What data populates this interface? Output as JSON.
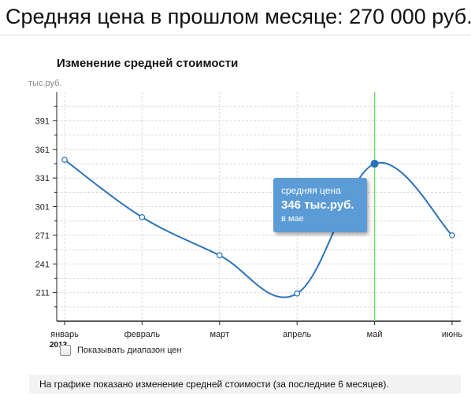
{
  "header": {
    "title": "Средняя цена в прошлом месяце: 270 000 руб."
  },
  "chart_data": {
    "type": "line",
    "title": "Изменение средней стоимости",
    "ylabel": "тыс.руб.",
    "xlabel": "",
    "categories": [
      "январь",
      "февраль",
      "март",
      "апрель",
      "май",
      "июнь"
    ],
    "year_label": "2013",
    "values": [
      350,
      290,
      250,
      210,
      346,
      271
    ],
    "yticks": [
      211,
      241,
      271,
      301,
      331,
      361,
      391
    ],
    "ylim": [
      181,
      421
    ],
    "grid": true,
    "line_color": "#2c72b8",
    "highlight": {
      "category": "май",
      "marker_line_color": "#6fdc6f",
      "tooltip": {
        "caption": "средняя цена",
        "value": "346 тыс.руб.",
        "month": "в мае"
      }
    }
  },
  "controls": {
    "show_range_label": "Показывать диапазон цен",
    "show_range_checked": false
  },
  "footer": {
    "note": "На графике показано изменение средней стоимости (за последние 6 месяцев)."
  }
}
